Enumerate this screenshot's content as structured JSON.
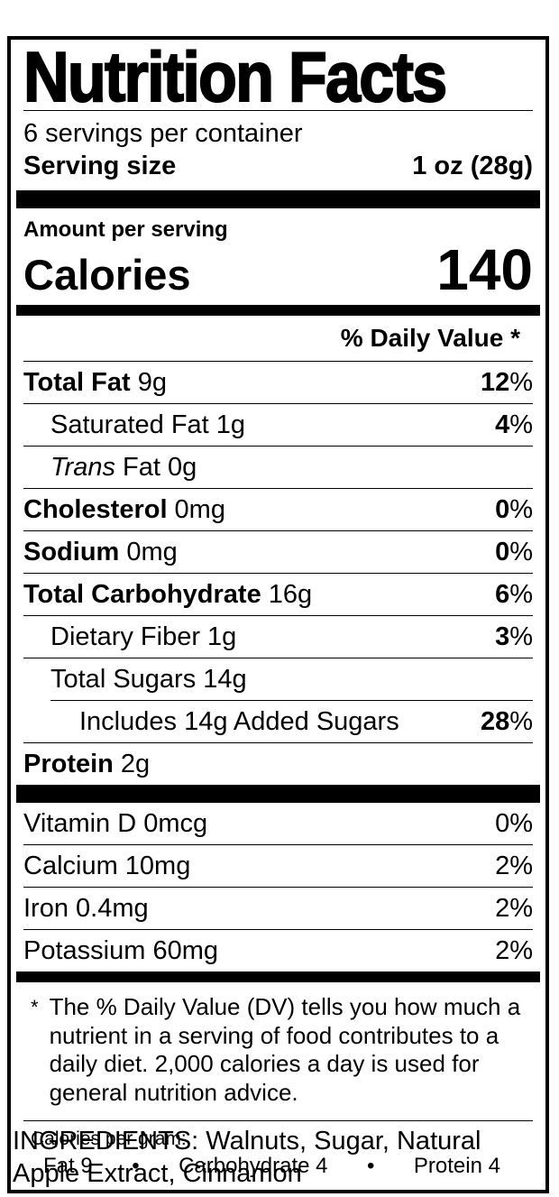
{
  "label": {
    "title": "Nutrition Facts",
    "servings_per_container": "6 servings per container",
    "serving_size": {
      "label": "Serving size",
      "value": "1 oz (28g)"
    },
    "amount_per_serving": "Amount per serving",
    "calories": {
      "label": "Calories",
      "value": "140"
    },
    "daily_value_header": "% Daily Value *",
    "percent_sign": "%",
    "nutrients": [
      {
        "name": "Total Fat",
        "amount": "9g",
        "dv": "12"
      },
      {
        "name": "Saturated Fat",
        "amount": "1g",
        "dv": "4"
      },
      {
        "name": "Trans",
        "amount": "Fat 0g",
        "dv": ""
      },
      {
        "name": "Cholesterol",
        "amount": "0mg",
        "dv": "0"
      },
      {
        "name": "Sodium",
        "amount": "0mg",
        "dv": "0"
      },
      {
        "name": "Total Carbohydrate",
        "amount": "16g",
        "dv": "6"
      },
      {
        "name": "Dietary Fiber",
        "amount": "1g",
        "dv": "3"
      },
      {
        "name": "Total Sugars",
        "amount": "14g",
        "dv": ""
      },
      {
        "name": "Includes 14g Added Sugars",
        "amount": "",
        "dv": "28"
      },
      {
        "name": "Protein",
        "amount": "2g",
        "dv": ""
      }
    ],
    "vitamins": [
      {
        "name": "Vitamin D 0mcg",
        "dv": "0"
      },
      {
        "name": "Calcium 10mg",
        "dv": "2"
      },
      {
        "name": "Iron 0.4mg",
        "dv": "2"
      },
      {
        "name": "Potassium 60mg",
        "dv": "2"
      }
    ],
    "footnote": {
      "marker": "*",
      "text": "The % Daily Value (DV) tells you how much a nutrient in a serving of food contributes to a daily diet. 2,000 calories a day is used for general nutrition advice."
    },
    "calories_per_gram": {
      "heading": "Calories per gram:",
      "fat": "Fat 9",
      "bullet1": "•",
      "carbohydrate": "Carbohydrate 4",
      "bullet2": "•",
      "protein": "Protein 4"
    }
  },
  "ingredients": "INGREDIENTS: Walnuts, Sugar, Natural Apple Extract, Cinnamon"
}
